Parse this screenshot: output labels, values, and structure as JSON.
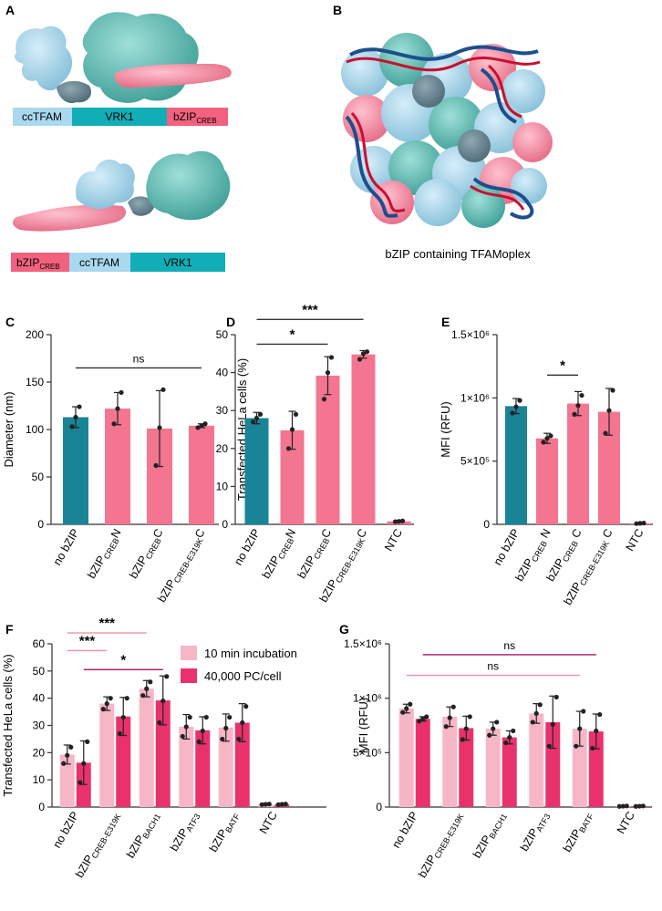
{
  "panels": {
    "A": "A",
    "B": "B",
    "C": "C",
    "D": "D",
    "E": "E",
    "F": "F",
    "G": "G"
  },
  "panelA": {
    "top_domains": [
      "ccTFAM",
      "VRK1",
      "bZIP"
    ],
    "top_sub": "CREB",
    "bottom_domains": [
      "bZIP",
      "ccTFAM",
      "VRK1"
    ],
    "bottom_sub": "CREB"
  },
  "panelB": {
    "caption": "bZIP containing TFAMoplex"
  },
  "colors": {
    "teal": "#1a8497",
    "pink": "#f4758f",
    "light_pink": "#f7b6c6",
    "magenta": "#e9326b",
    "sig_light": "#f28da7",
    "sig_dark": "#b01060",
    "cc_blue": "#a9d8ef",
    "vrk_teal": "#12aeb8",
    "bzip_pink": "#f2617e"
  },
  "chart_data": [
    {
      "id": "C",
      "type": "bar",
      "ylabel": "Diameter (nm)",
      "ylim": [
        0,
        200
      ],
      "yticks": [
        "0",
        "50",
        "100",
        "150",
        "200"
      ],
      "categories": [
        {
          "main": "no bZIP",
          "sub": "",
          "tail": ""
        },
        {
          "main": "bZIP",
          "sub": "CREB",
          "tail": "N"
        },
        {
          "main": "bZIP",
          "sub": "CREB",
          "tail": "C"
        },
        {
          "main": "bZIP",
          "sub": "CREB-E319K",
          "tail": "C"
        }
      ],
      "values": [
        113,
        122,
        101,
        104
      ],
      "errors": [
        11,
        17,
        40,
        2
      ],
      "points": [
        [
          103,
          113,
          124
        ],
        [
          106,
          122,
          139
        ],
        [
          62,
          102,
          142
        ],
        [
          102,
          104,
          106
        ]
      ],
      "colors": [
        "teal",
        "pink",
        "pink",
        "pink"
      ],
      "significance": [
        {
          "label": "ns",
          "from": 0,
          "to": 3,
          "y": 165
        }
      ]
    },
    {
      "id": "D",
      "type": "bar",
      "ylabel": "Transfected HeLa cells (%)",
      "ylim": [
        0,
        50
      ],
      "yticks": [
        "0",
        "10",
        "20",
        "30",
        "40",
        "50"
      ],
      "categories": [
        {
          "main": "no bZIP",
          "sub": "",
          "tail": ""
        },
        {
          "main": "bZIP",
          "sub": "CREB",
          "tail": "N"
        },
        {
          "main": "bZIP",
          "sub": "CREB",
          "tail": "C"
        },
        {
          "main": "bZIP",
          "sub": "CREB-E319K",
          "tail": "C"
        },
        {
          "main": "NTC",
          "sub": "",
          "tail": ""
        }
      ],
      "values": [
        28,
        24.8,
        39.2,
        44.8,
        0.8
      ],
      "errors": [
        1.5,
        5,
        5,
        1,
        0.2
      ],
      "points": [
        [
          27,
          28,
          29
        ],
        [
          20,
          25,
          29
        ],
        [
          33,
          40,
          44
        ],
        [
          43.5,
          45,
          45.5
        ],
        [
          0.7,
          0.8,
          0.9
        ]
      ],
      "colors": [
        "teal",
        "pink",
        "pink",
        "pink",
        "pink"
      ],
      "significance": [
        {
          "label": "***",
          "from": 0,
          "to": 3,
          "y": 54
        },
        {
          "label": "*",
          "from": 0,
          "to": 2,
          "y": 47.5
        }
      ]
    },
    {
      "id": "E",
      "type": "bar",
      "ylabel": "MFI (RFU)",
      "ylim": [
        0,
        1500000
      ],
      "yticks": [
        "0",
        "5×10⁵",
        "1×10⁶",
        "1.5×10⁶"
      ],
      "categories": [
        {
          "main": "no bZIP",
          "sub": "",
          "tail": ""
        },
        {
          "main": "bZIP",
          "sub": "CREB",
          "tail": " N"
        },
        {
          "main": "bZIP",
          "sub": "CREB",
          "tail": " C"
        },
        {
          "main": "bZIP",
          "sub": "CREB-E319K",
          "tail": " C"
        },
        {
          "main": "NTC",
          "sub": "",
          "tail": ""
        }
      ],
      "values": [
        935000,
        680000,
        955000,
        890000,
        8000
      ],
      "errors": [
        60000,
        40000,
        95000,
        185000,
        3000
      ],
      "points": [
        [
          880000,
          930000,
          980000
        ],
        [
          650000,
          680000,
          700000
        ],
        [
          870000,
          940000,
          1020000
        ],
        [
          720000,
          900000,
          1060000
        ],
        [
          6000,
          8000,
          10000
        ]
      ],
      "colors": [
        "teal",
        "pink",
        "pink",
        "pink",
        "pink"
      ],
      "significance": [
        {
          "label": "*",
          "from": 1,
          "to": 2,
          "y": 1180000
        }
      ]
    },
    {
      "id": "F",
      "type": "grouped-bar",
      "ylabel": "Transfected HeLa cells (%)",
      "ylim": [
        0,
        60
      ],
      "yticks": [
        "0",
        "10",
        "20",
        "30",
        "40",
        "50",
        "60"
      ],
      "categories": [
        {
          "main": "no bZIP",
          "sub": "",
          "tail": ""
        },
        {
          "main": "bZIP",
          "sub": "CREB-E319K",
          "tail": ""
        },
        {
          "main": "bZIP",
          "sub": "BACH1",
          "tail": ""
        },
        {
          "main": "bZIP",
          "sub": "ATF3",
          "tail": ""
        },
        {
          "main": "bZIP",
          "sub": "BATF",
          "tail": ""
        },
        {
          "main": "NTC",
          "sub": "",
          "tail": ""
        }
      ],
      "legend": [
        "10 min incubation",
        "40,000 PC/cell"
      ],
      "series": [
        {
          "name": "10 min incubation",
          "color": "light_pink",
          "values": [
            19.3,
            38,
            43.5,
            29.5,
            29.2,
            1.0
          ],
          "errors": [
            3.5,
            2.5,
            3,
            4.5,
            5,
            0.2
          ],
          "points": [
            [
              16,
              19,
              22
            ],
            [
              36,
              38,
              40
            ],
            [
              41,
              43.5,
              46
            ],
            [
              26,
              29.5,
              33
            ],
            [
              25,
              29,
              33
            ],
            [
              0.9,
              1.0,
              1.1
            ]
          ]
        },
        {
          "name": "40,000 PC/cell",
          "color": "magenta",
          "values": [
            16.3,
            33.3,
            39.2,
            28.2,
            31,
            1.0
          ],
          "errors": [
            8,
            7,
            9,
            5,
            7,
            0.2
          ],
          "points": [
            [
              9,
              16,
              24
            ],
            [
              27,
              33,
              40
            ],
            [
              31,
              39,
              48
            ],
            [
              24,
              28,
              33
            ],
            [
              25,
              31,
              37
            ],
            [
              0.9,
              1.0,
              1.1
            ]
          ]
        }
      ],
      "significance": [
        {
          "label": "***",
          "from": 0,
          "to": 2,
          "y": 64,
          "color": "sig_light",
          "side": 0
        },
        {
          "label": "***",
          "from": 0,
          "to": 1,
          "y": 57.5,
          "color": "sig_light",
          "side": 0
        },
        {
          "label": "*",
          "from": 0,
          "to": 2,
          "y": 50.5,
          "color": "sig_dark",
          "side": 1
        }
      ]
    },
    {
      "id": "G",
      "type": "grouped-bar",
      "ylabel": "MFI (RFU)",
      "ylim": [
        0,
        1500000
      ],
      "yticks": [
        "0",
        "5×10⁵",
        "1×10⁶",
        "1.5×10⁶"
      ],
      "categories": [
        {
          "main": "no bZIP",
          "sub": "",
          "tail": ""
        },
        {
          "main": "bZIP",
          "sub": "CREB-E319K",
          "tail": ""
        },
        {
          "main": "bZIP",
          "sub": "BACH1",
          "tail": ""
        },
        {
          "main": "bZIP",
          "sub": "ATF3",
          "tail": ""
        },
        {
          "main": "bZIP",
          "sub": "BATF",
          "tail": ""
        },
        {
          "main": "NTC",
          "sub": "",
          "tail": ""
        }
      ],
      "series": [
        {
          "name": "10 min incubation",
          "color": "light_pink",
          "values": [
            905000,
            830000,
            720000,
            860000,
            720000,
            8000
          ],
          "errors": [
            40000,
            90000,
            60000,
            90000,
            160000,
            3000
          ],
          "points": [
            [
              870000,
              905000,
              945000
            ],
            [
              740000,
              820000,
              920000
            ],
            [
              660000,
              720000,
              780000
            ],
            [
              780000,
              860000,
              940000
            ],
            [
              560000,
              720000,
              880000
            ],
            [
              6000,
              8000,
              10000
            ]
          ]
        },
        {
          "name": "40,000 PC/cell",
          "color": "magenta",
          "values": [
            810000,
            725000,
            640000,
            780000,
            695000,
            8000
          ],
          "errors": [
            20000,
            110000,
            60000,
            240000,
            160000,
            3000
          ],
          "points": [
            [
              790000,
              810000,
              830000
            ],
            [
              620000,
              720000,
              830000
            ],
            [
              590000,
              640000,
              700000
            ],
            [
              560000,
              760000,
              1010000
            ],
            [
              540000,
              700000,
              850000
            ],
            [
              6000,
              8000,
              10000
            ]
          ]
        }
      ],
      "significance": [
        {
          "label": "ns",
          "from": 0,
          "to": 4,
          "y": 1400000,
          "color": "sig_dark",
          "side": 1
        },
        {
          "label": "ns",
          "from": 0,
          "to": 4,
          "y": 1210000,
          "color": "sig_light",
          "side": 0
        }
      ]
    }
  ]
}
